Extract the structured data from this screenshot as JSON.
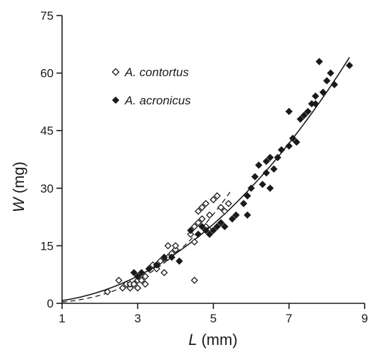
{
  "chart_data": {
    "type": "scatter",
    "title": "",
    "xlabel_var": "L",
    "xlabel_unit": "(mm)",
    "ylabel_var": "W",
    "ylabel_unit": "(mg)",
    "xlim": [
      1,
      9
    ],
    "ylim": [
      0,
      75
    ],
    "xticks": [
      "1",
      "3",
      "5",
      "7",
      "9"
    ],
    "yticks": [
      "0",
      "15",
      "30",
      "45",
      "60",
      "75"
    ],
    "grid": false,
    "legend_position": "top-left",
    "series": [
      {
        "name": "A. contortus",
        "marker": "open-diamond",
        "fit": "dashed",
        "x": [
          2.2,
          2.5,
          2.6,
          2.7,
          2.8,
          2.8,
          2.9,
          3.0,
          3.0,
          3.1,
          3.2,
          3.2,
          3.3,
          3.4,
          3.5,
          3.6,
          3.7,
          3.8,
          3.8,
          3.9,
          4.0,
          4.0,
          4.4,
          4.5,
          4.5,
          4.6,
          4.6,
          4.7,
          4.7,
          4.8,
          4.8,
          4.9,
          4.9,
          5.0,
          5.1,
          5.2,
          5.3,
          5.4,
          4.5
        ],
        "y": [
          3,
          6,
          4,
          5,
          4,
          5,
          5,
          6,
          4,
          6,
          5,
          7,
          9,
          10,
          9,
          11,
          8,
          12,
          15,
          13,
          14,
          15,
          18,
          16,
          20,
          21,
          24,
          22,
          25,
          26,
          20,
          19,
          23,
          27,
          28,
          25,
          24,
          26,
          6
        ]
      },
      {
        "name": "A. acronicus",
        "marker": "filled-diamond",
        "fit": "solid",
        "x": [
          2.9,
          3.0,
          3.1,
          3.3,
          3.5,
          3.7,
          3.9,
          4.1,
          4.4,
          4.6,
          4.7,
          4.8,
          4.9,
          5.0,
          5.1,
          5.2,
          5.3,
          5.5,
          5.6,
          5.8,
          5.9,
          6.0,
          6.1,
          6.2,
          6.3,
          6.4,
          6.5,
          6.5,
          6.6,
          6.7,
          6.8,
          7.0,
          7.1,
          7.2,
          7.3,
          7.4,
          7.5,
          7.6,
          7.7,
          7.8,
          7.9,
          8.0,
          8.1,
          8.2,
          8.6,
          7.0,
          7.7,
          6.4,
          5.9
        ],
        "y": [
          8,
          7,
          8,
          9,
          10,
          12,
          12,
          11,
          19,
          18,
          20,
          19,
          18,
          19,
          20,
          21,
          20,
          22,
          23,
          26,
          28,
          30,
          33,
          36,
          31,
          34,
          30,
          38,
          35,
          38,
          40,
          41,
          43,
          42,
          48,
          49,
          50,
          52,
          54,
          63,
          55,
          58,
          60,
          57,
          62,
          50,
          52,
          37,
          23
        ]
      }
    ]
  }
}
